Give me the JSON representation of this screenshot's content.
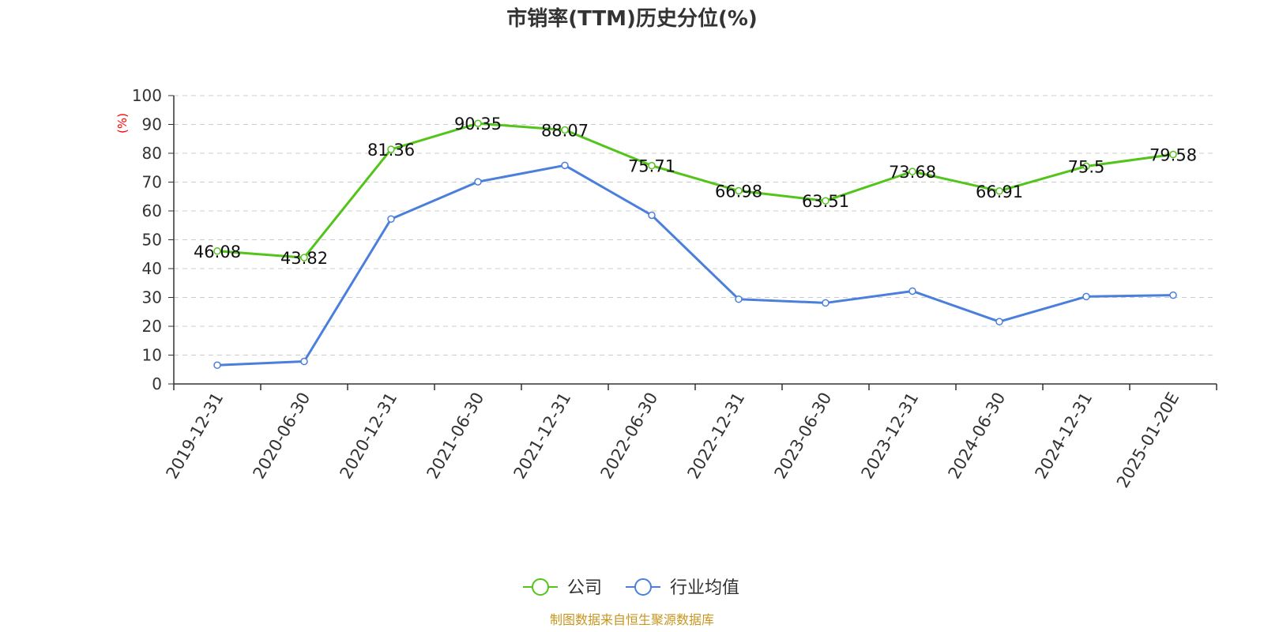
{
  "title": "市销率(TTM)历史分位(%)",
  "unit_label": "(%)",
  "source": "制图数据来自恒生聚源数据库",
  "colors": {
    "company": "#52c41a",
    "industry": "#4a7fdc",
    "unit": "#ff0000",
    "source": "#c8961e",
    "grid": "#cccccc",
    "axis": "#333333"
  },
  "chart_data": {
    "type": "line",
    "title": "市销率(TTM)历史分位(%)",
    "ylabel": "(%)",
    "ylim": [
      0,
      100
    ],
    "yticks": [
      0,
      10,
      20,
      30,
      40,
      50,
      60,
      70,
      80,
      90,
      100
    ],
    "grid": true,
    "legend_position": "bottom-center",
    "categories": [
      "2019-12-31",
      "2020-06-30",
      "2020-12-31",
      "2021-06-30",
      "2021-12-31",
      "2022-06-30",
      "2022-12-31",
      "2023-06-30",
      "2023-12-31",
      "2024-06-30",
      "2024-12-31",
      "2025-01-20E"
    ],
    "series": [
      {
        "name": "公司",
        "color": "#52c41a",
        "values": [
          46.08,
          43.82,
          81.36,
          90.35,
          88.07,
          75.71,
          66.98,
          63.51,
          73.68,
          66.91,
          75.5,
          79.58
        ],
        "labels": [
          "46.08",
          "43.82",
          "81.36",
          "90.35",
          "88.07",
          "75.71",
          "66.98",
          "63.51",
          "73.68",
          "66.91",
          "75.5",
          "79.58"
        ]
      },
      {
        "name": "行业均值",
        "color": "#4a7fdc",
        "values": [
          6.5,
          7.8,
          57.2,
          70.1,
          75.8,
          58.5,
          29.4,
          28.1,
          32.2,
          21.6,
          30.3,
          30.8
        ]
      }
    ]
  }
}
